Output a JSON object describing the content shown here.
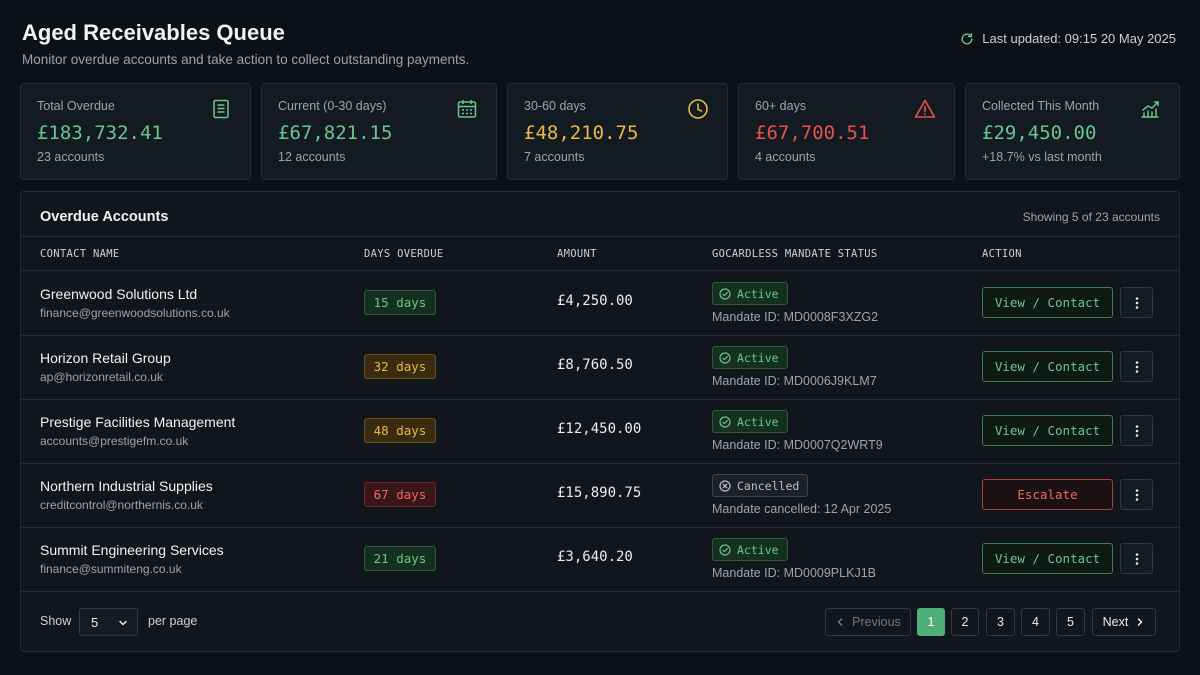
{
  "header": {
    "title": "Aged Receivables Queue",
    "subtitle": "Monitor overdue accounts and take action to collect outstanding payments.",
    "last_updated": "Last updated: 09:15 20 May 2025"
  },
  "cards": [
    {
      "label": "Total Overdue",
      "value": "£183,732.41",
      "sub": "23 accounts",
      "icon": "document-icon",
      "color": "#6cc48e"
    },
    {
      "label": "Current (0-30 days)",
      "value": "£67,821.15",
      "sub": "12 accounts",
      "icon": "calendar-icon",
      "color": "#6cc48e"
    },
    {
      "label": "30-60 days",
      "value": "£48,210.75",
      "sub": "7 accounts",
      "icon": "clock-icon",
      "color": "#e8b74a"
    },
    {
      "label": "60+ days",
      "value": "£67,700.51",
      "sub": "4 accounts",
      "icon": "warning-icon",
      "color": "#e5534b"
    },
    {
      "label": "Collected This Month",
      "value": "£29,450.00",
      "sub": "+18.7% vs last month",
      "icon": "trend-up-icon",
      "color": "#6cc48e"
    }
  ],
  "table": {
    "title": "Overdue Accounts",
    "count_text": "Showing 5 of 23 accounts",
    "columns": [
      "CONTACT NAME",
      "DAYS OVERDUE",
      "AMOUNT",
      "GOCARDLESS MANDATE STATUS",
      "ACTION"
    ],
    "rows": [
      {
        "name": "Greenwood Solutions Ltd",
        "email": "finance@greenwoodsolutions.co.uk",
        "days": "15 days",
        "amount": "£4,250.00",
        "status": "Active",
        "note": "Mandate ID: MD0008F3XZG2",
        "action": "View / Contact"
      },
      {
        "name": "Horizon Retail Group",
        "email": "ap@horizonretail.co.uk",
        "days": "32 days",
        "amount": "£8,760.50",
        "status": "Active",
        "note": "Mandate ID: MD0006J9KLM7",
        "action": "View / Contact"
      },
      {
        "name": "Prestige Facilities Management",
        "email": "accounts@prestigefm.co.uk",
        "days": "48 days",
        "amount": "£12,450.00",
        "status": "Active",
        "note": "Mandate ID: MD0007Q2WRT9",
        "action": "View / Contact"
      },
      {
        "name": "Northern Industrial Supplies",
        "email": "creditcontrol@northernis.co.uk",
        "days": "67 days",
        "amount": "£15,890.75",
        "status": "Cancelled",
        "note": "Mandate cancelled: 12 Apr 2025",
        "action": "Escalate"
      },
      {
        "name": "Summit Engineering Services",
        "email": "finance@summiteng.co.uk",
        "days": "21 days",
        "amount": "£3,640.20",
        "status": "Active",
        "note": "Mandate ID: MD0009PLKJ1B",
        "action": "View / Contact"
      }
    ]
  },
  "footer": {
    "show_label": "Show",
    "per_page_value": "5",
    "per_page_label": "per page",
    "pagination": {
      "previous": "Previous",
      "next": "Next",
      "pages": [
        "1",
        "2",
        "3",
        "4",
        "5"
      ],
      "current": "1"
    }
  }
}
